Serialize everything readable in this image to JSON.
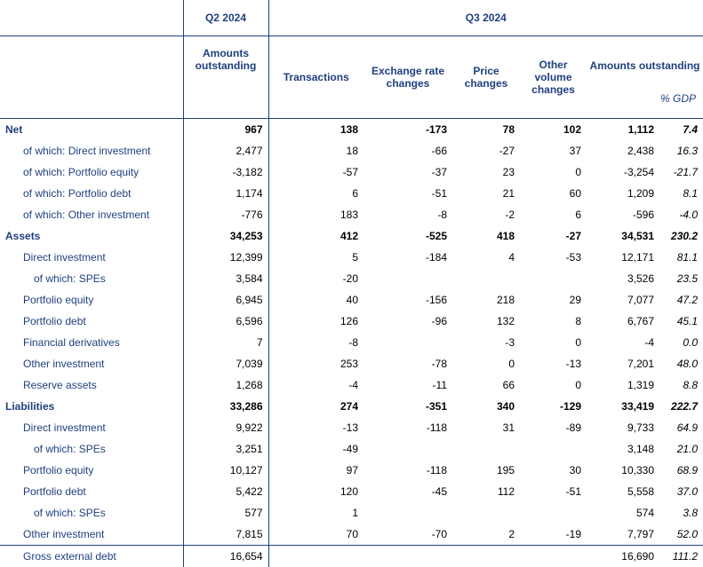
{
  "header": {
    "q2_label": "Q2 2024",
    "q3_label": "Q3 2024",
    "col_amounts_outstanding_q2": "Amounts outstanding",
    "col_transactions": "Transactions",
    "col_exchange_rate": "Exchange rate changes",
    "col_price": "Price changes",
    "col_other_volume": "Other volume changes",
    "col_amounts_outstanding_q3": "Amounts outstanding",
    "col_pct_gdp": "% GDP"
  },
  "rows": [
    {
      "label": "Net",
      "level": 0,
      "bold": true,
      "cells": [
        "967",
        "138",
        "-173",
        "78",
        "102",
        "1,112",
        "7.4"
      ]
    },
    {
      "label": "of which: Direct investment",
      "level": 1,
      "bold": false,
      "cells": [
        "2,477",
        "18",
        "-66",
        "-27",
        "37",
        "2,438",
        "16.3"
      ]
    },
    {
      "label": "of which: Portfolio equity",
      "level": 1,
      "bold": false,
      "cells": [
        "-3,182",
        "-57",
        "-37",
        "23",
        "0",
        "-3,254",
        "-21.7"
      ]
    },
    {
      "label": "of which: Portfolio debt",
      "level": 1,
      "bold": false,
      "cells": [
        "1,174",
        "6",
        "-51",
        "21",
        "60",
        "1,209",
        "8.1"
      ]
    },
    {
      "label": "of which: Other investment",
      "level": 1,
      "bold": false,
      "cells": [
        "-776",
        "183",
        "-8",
        "-2",
        "6",
        "-596",
        "-4.0"
      ]
    },
    {
      "label": "Assets",
      "level": 0,
      "bold": true,
      "cells": [
        "34,253",
        "412",
        "-525",
        "418",
        "-27",
        "34,531",
        "230.2"
      ]
    },
    {
      "label": "Direct investment",
      "level": 1,
      "bold": false,
      "cells": [
        "12,399",
        "5",
        "-184",
        "4",
        "-53",
        "12,171",
        "81.1"
      ]
    },
    {
      "label": "of which: SPEs",
      "level": 2,
      "bold": false,
      "cells": [
        "3,584",
        "-20",
        "",
        "",
        "",
        "3,526",
        "23.5"
      ]
    },
    {
      "label": "Portfolio equity",
      "level": 1,
      "bold": false,
      "cells": [
        "6,945",
        "40",
        "-156",
        "218",
        "29",
        "7,077",
        "47.2"
      ]
    },
    {
      "label": "Portfolio debt",
      "level": 1,
      "bold": false,
      "cells": [
        "6,596",
        "126",
        "-96",
        "132",
        "8",
        "6,767",
        "45.1"
      ]
    },
    {
      "label": "Financial derivatives",
      "level": 1,
      "bold": false,
      "cells": [
        "7",
        "-8",
        "",
        "-3",
        "0",
        "-4",
        "0.0"
      ]
    },
    {
      "label": "Other investment",
      "level": 1,
      "bold": false,
      "cells": [
        "7,039",
        "253",
        "-78",
        "0",
        "-13",
        "7,201",
        "48.0"
      ]
    },
    {
      "label": "Reserve assets",
      "level": 1,
      "bold": false,
      "cells": [
        "1,268",
        "-4",
        "-11",
        "66",
        "0",
        "1,319",
        "8.8"
      ]
    },
    {
      "label": "Liabilities",
      "level": 0,
      "bold": true,
      "cells": [
        "33,286",
        "274",
        "-351",
        "340",
        "-129",
        "33,419",
        "222.7"
      ]
    },
    {
      "label": "Direct investment",
      "level": 1,
      "bold": false,
      "cells": [
        "9,922",
        "-13",
        "-118",
        "31",
        "-89",
        "9,733",
        "64.9"
      ]
    },
    {
      "label": "of which: SPEs",
      "level": 2,
      "bold": false,
      "cells": [
        "3,251",
        "-49",
        "",
        "",
        "",
        "3,148",
        "21.0"
      ]
    },
    {
      "label": "Portfolio equity",
      "level": 1,
      "bold": false,
      "cells": [
        "10,127",
        "97",
        "-118",
        "195",
        "30",
        "10,330",
        "68.9"
      ]
    },
    {
      "label": "Portfolio debt",
      "level": 1,
      "bold": false,
      "cells": [
        "5,422",
        "120",
        "-45",
        "112",
        "-51",
        "5,558",
        "37.0"
      ]
    },
    {
      "label": "of which: SPEs",
      "level": 2,
      "bold": false,
      "cells": [
        "577",
        "1",
        "",
        "",
        "",
        "574",
        "3.8"
      ]
    },
    {
      "label": "Other investment",
      "level": 1,
      "bold": false,
      "cells": [
        "7,815",
        "70",
        "-70",
        "2",
        "-19",
        "7,797",
        "52.0"
      ]
    },
    {
      "label": "Gross external debt",
      "level": 1,
      "bold": false,
      "cells": [
        "16,654",
        "",
        "",
        "",
        "",
        "16,690",
        "111.2"
      ]
    }
  ]
}
